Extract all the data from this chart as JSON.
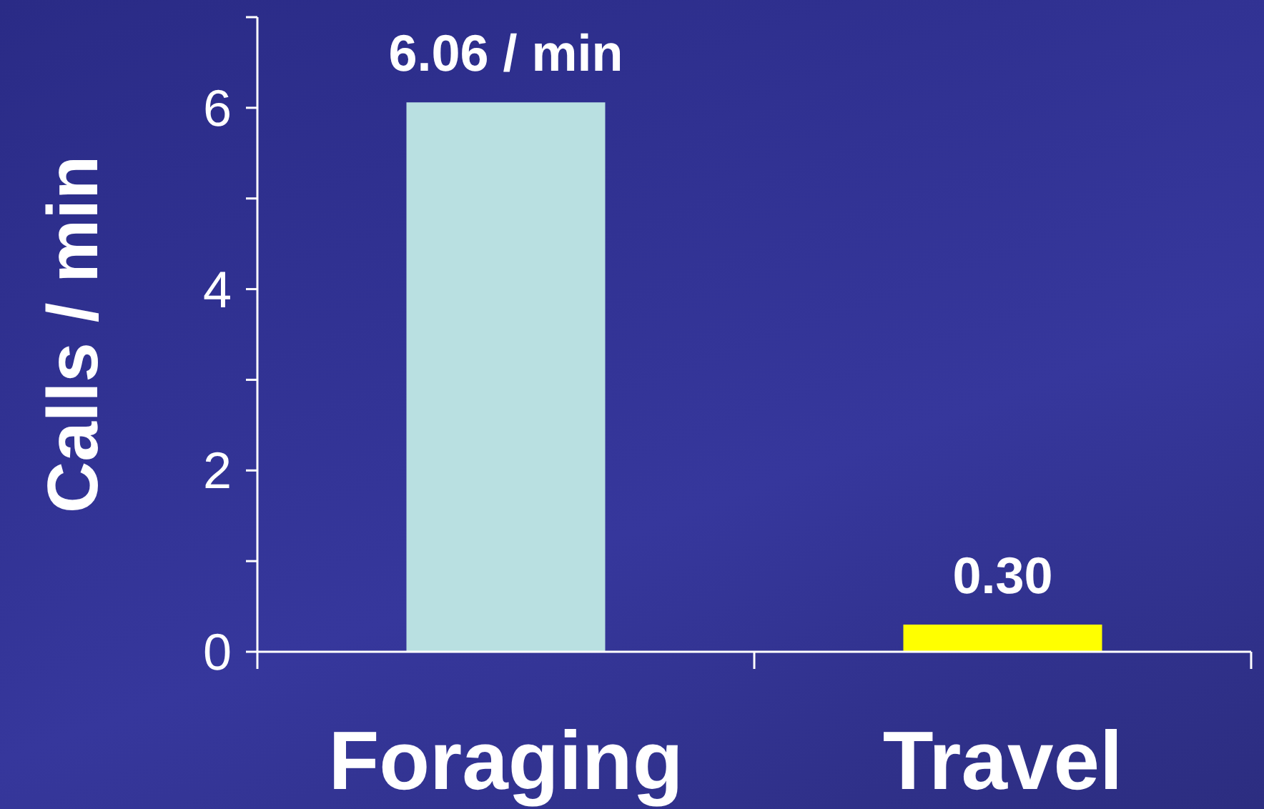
{
  "chart_data": {
    "type": "bar",
    "ylabel": "Calls / min",
    "categories": [
      "Foraging",
      "Travel"
    ],
    "values": [
      6.06,
      0.3
    ],
    "colors": [
      "#b9e0e1",
      "#ffff00"
    ],
    "value_labels": [
      "6.06 / min",
      "0.30"
    ],
    "ylim": [
      0,
      7
    ],
    "yticks": [
      0,
      {
        "value": 1,
        "label": null
      },
      2,
      {
        "value": 3,
        "label": null
      },
      4,
      {
        "value": 5,
        "label": null
      },
      6,
      {
        "value": 7,
        "label": null
      }
    ]
  }
}
